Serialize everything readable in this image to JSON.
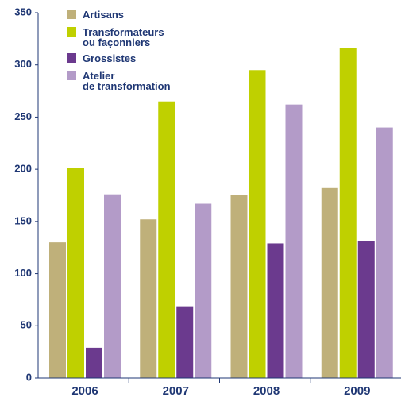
{
  "chart_data": {
    "type": "bar",
    "categories": [
      "2006",
      "2007",
      "2008",
      "2009"
    ],
    "series": [
      {
        "name": "Artisans",
        "color": "#bfb07a",
        "values": [
          130,
          152,
          175,
          182
        ]
      },
      {
        "name": "Transformateurs\nou façonniers",
        "color": "#bfd000",
        "values": [
          201,
          265,
          295,
          316
        ]
      },
      {
        "name": "Grossistes",
        "color": "#6b3a8e",
        "values": [
          29,
          68,
          129,
          131
        ]
      },
      {
        "name": "Atelier\nde transformation",
        "color": "#b39bc8",
        "values": [
          176,
          167,
          262,
          240
        ]
      }
    ],
    "ylim": [
      0,
      350
    ],
    "yticks": [
      0,
      50,
      100,
      150,
      200,
      250,
      300,
      350
    ],
    "grid": false,
    "legend": "top-left"
  }
}
